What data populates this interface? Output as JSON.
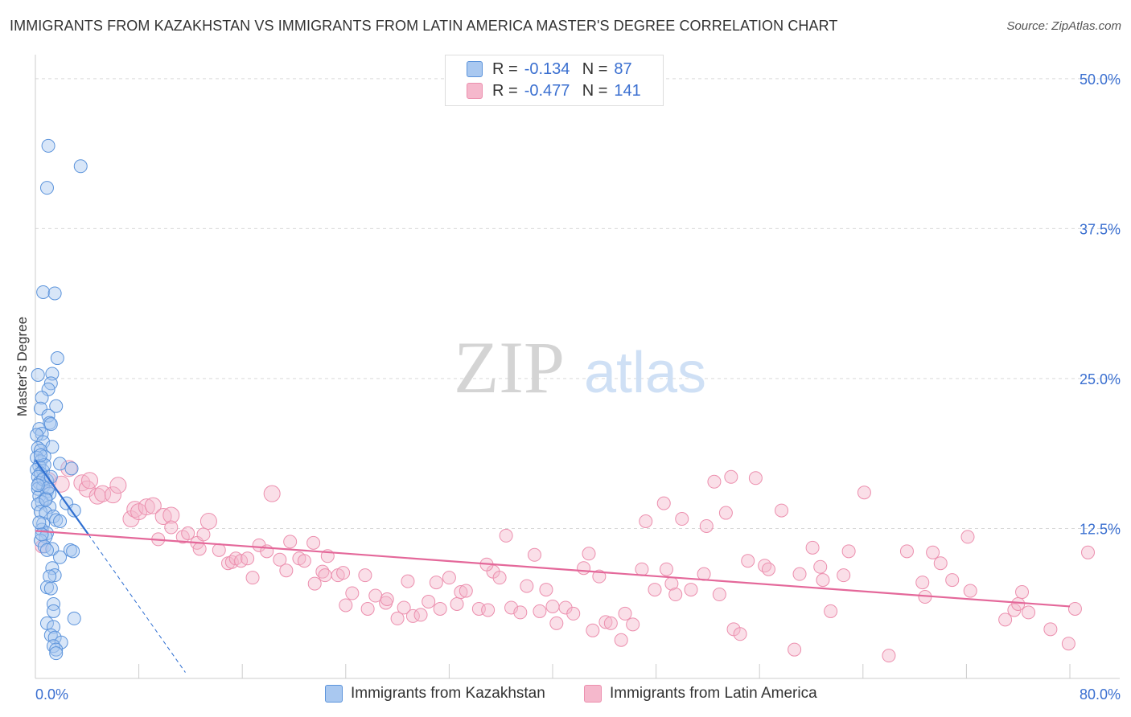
{
  "title": "IMMIGRANTS FROM KAZAKHSTAN VS IMMIGRANTS FROM LATIN AMERICA MASTER'S DEGREE CORRELATION CHART",
  "source": "Source: ZipAtlas.com",
  "watermark": {
    "part1": "ZIP",
    "part2": "atlas"
  },
  "colors": {
    "blue_fill": "#a9c8f0",
    "blue_stroke": "#5b93db",
    "blue_line": "#2f6fd1",
    "pink_fill": "#f5b8cc",
    "pink_stroke": "#ec8fae",
    "pink_line": "#e4689a",
    "axis_text": "#3a6fd0",
    "grid": "#d9d9d9"
  },
  "legend": {
    "rows": [
      {
        "r_label": "R =",
        "r_value": "-0.134",
        "n_label": "N =",
        "n_value": "87"
      },
      {
        "r_label": "R =",
        "r_value": "-0.477",
        "n_label": "N =",
        "n_value": "141"
      }
    ]
  },
  "chart_data": {
    "type": "scatter",
    "title": "IMMIGRANTS FROM KAZAKHSTAN VS IMMIGRANTS FROM LATIN AMERICA MASTER'S DEGREE CORRELATION CHART",
    "xlabel": "",
    "ylabel": "Master's Degree",
    "xlim": [
      0,
      80
    ],
    "ylim": [
      0,
      52
    ],
    "x_tick_labels": [
      "0.0%",
      "80.0%"
    ],
    "y_ticks": [
      12.5,
      25.0,
      37.5,
      50.0
    ],
    "y_tick_labels": [
      "12.5%",
      "25.0%",
      "37.5%",
      "50.0%"
    ],
    "grid": true,
    "series": [
      {
        "name": "Immigrants from Kazakhstan",
        "color": "blue",
        "points": [
          [
            1.0,
            44.4
          ],
          [
            3.5,
            42.7
          ],
          [
            0.9,
            40.9
          ],
          [
            0.6,
            32.2
          ],
          [
            1.5,
            32.1
          ],
          [
            1.7,
            26.7
          ],
          [
            1.3,
            25.4
          ],
          [
            0.2,
            25.3
          ],
          [
            1.2,
            24.6
          ],
          [
            1.0,
            24.1
          ],
          [
            0.5,
            23.4
          ],
          [
            1.6,
            22.7
          ],
          [
            0.4,
            22.5
          ],
          [
            1.0,
            21.9
          ],
          [
            1.1,
            21.3
          ],
          [
            1.2,
            21.2
          ],
          [
            0.3,
            20.8
          ],
          [
            0.5,
            20.4
          ],
          [
            0.1,
            20.3
          ],
          [
            0.6,
            19.7
          ],
          [
            1.3,
            19.3
          ],
          [
            0.2,
            19.2
          ],
          [
            0.4,
            19.0
          ],
          [
            0.7,
            18.5
          ],
          [
            0.1,
            18.4
          ],
          [
            0.4,
            18.1
          ],
          [
            0.3,
            17.7
          ],
          [
            1.9,
            17.9
          ],
          [
            0.1,
            17.4
          ],
          [
            0.6,
            17.3
          ],
          [
            2.8,
            17.5
          ],
          [
            0.4,
            17.1
          ],
          [
            0.2,
            16.8
          ],
          [
            0.9,
            16.5
          ],
          [
            0.3,
            16.3
          ],
          [
            0.6,
            16.0
          ],
          [
            0.2,
            15.8
          ],
          [
            0.9,
            15.6
          ],
          [
            1.1,
            15.4
          ],
          [
            0.3,
            15.2
          ],
          [
            0.8,
            15.0
          ],
          [
            0.5,
            14.7
          ],
          [
            2.4,
            14.6
          ],
          [
            0.2,
            14.5
          ],
          [
            1.1,
            14.3
          ],
          [
            3.0,
            14.0
          ],
          [
            0.4,
            13.9
          ],
          [
            0.8,
            13.8
          ],
          [
            1.4,
            13.5
          ],
          [
            1.6,
            13.2
          ],
          [
            1.9,
            13.1
          ],
          [
            0.6,
            12.9
          ],
          [
            0.5,
            12.4
          ],
          [
            0.9,
            12.1
          ],
          [
            0.8,
            11.8
          ],
          [
            0.4,
            11.5
          ],
          [
            0.7,
            11.0
          ],
          [
            1.3,
            10.8
          ],
          [
            0.9,
            10.7
          ],
          [
            2.7,
            10.7
          ],
          [
            2.9,
            10.6
          ],
          [
            1.9,
            10.1
          ],
          [
            1.3,
            9.2
          ],
          [
            1.5,
            8.6
          ],
          [
            1.1,
            8.5
          ],
          [
            0.9,
            7.6
          ],
          [
            1.2,
            7.5
          ],
          [
            1.4,
            6.2
          ],
          [
            1.4,
            5.6
          ],
          [
            3.0,
            5.0
          ],
          [
            0.9,
            4.6
          ],
          [
            1.4,
            4.3
          ],
          [
            1.2,
            3.6
          ],
          [
            1.5,
            3.4
          ],
          [
            2.0,
            3.0
          ],
          [
            1.4,
            2.7
          ],
          [
            1.6,
            2.4
          ],
          [
            1.6,
            2.1
          ],
          [
            0.6,
            16.6
          ],
          [
            0.8,
            14.9
          ],
          [
            0.3,
            13.0
          ],
          [
            0.5,
            12.0
          ],
          [
            1.0,
            15.9
          ],
          [
            0.7,
            17.8
          ],
          [
            0.2,
            16.1
          ],
          [
            0.4,
            18.6
          ],
          [
            1.2,
            16.8
          ]
        ],
        "trend": {
          "x0": 0.0,
          "y0": 18.2,
          "x1": 4.1,
          "y1": 12.0,
          "dash_to_x": 11.6,
          "dash_to_y": 0.5
        }
      },
      {
        "name": "Immigrants from Latin America",
        "color": "pink",
        "points": [
          [
            0.5,
            11.0
          ],
          [
            1.0,
            16.5
          ],
          [
            2.0,
            16.2
          ],
          [
            2.6,
            17.5
          ],
          [
            3.6,
            16.3
          ],
          [
            4.0,
            15.8
          ],
          [
            4.2,
            16.5
          ],
          [
            4.8,
            15.2
          ],
          [
            5.2,
            15.4
          ],
          [
            6.0,
            15.3
          ],
          [
            6.4,
            16.1
          ],
          [
            7.4,
            13.3
          ],
          [
            7.7,
            14.1
          ],
          [
            8.0,
            13.9
          ],
          [
            8.6,
            14.3
          ],
          [
            9.1,
            14.4
          ],
          [
            9.5,
            11.6
          ],
          [
            9.9,
            13.5
          ],
          [
            10.5,
            13.6
          ],
          [
            10.5,
            12.6
          ],
          [
            11.4,
            11.8
          ],
          [
            11.8,
            12.1
          ],
          [
            12.5,
            11.3
          ],
          [
            12.7,
            10.8
          ],
          [
            13.0,
            12.0
          ],
          [
            13.4,
            13.1
          ],
          [
            14.2,
            10.7
          ],
          [
            14.9,
            9.6
          ],
          [
            15.2,
            9.7
          ],
          [
            15.5,
            10.0
          ],
          [
            15.9,
            9.8
          ],
          [
            16.4,
            10.0
          ],
          [
            16.8,
            8.4
          ],
          [
            17.3,
            11.1
          ],
          [
            17.9,
            10.6
          ],
          [
            18.3,
            15.4
          ],
          [
            18.9,
            9.9
          ],
          [
            19.4,
            9.0
          ],
          [
            19.7,
            11.4
          ],
          [
            20.4,
            10.0
          ],
          [
            20.8,
            9.8
          ],
          [
            21.5,
            11.3
          ],
          [
            21.6,
            7.9
          ],
          [
            22.2,
            8.9
          ],
          [
            22.4,
            8.6
          ],
          [
            23.4,
            8.6
          ],
          [
            23.8,
            8.8
          ],
          [
            24.0,
            6.1
          ],
          [
            24.5,
            7.1
          ],
          [
            25.5,
            8.6
          ],
          [
            25.7,
            5.8
          ],
          [
            26.3,
            6.9
          ],
          [
            27.1,
            6.3
          ],
          [
            27.2,
            6.6
          ],
          [
            28.0,
            5.0
          ],
          [
            28.5,
            5.9
          ],
          [
            28.8,
            8.1
          ],
          [
            29.2,
            5.2
          ],
          [
            29.8,
            5.3
          ],
          [
            30.4,
            6.4
          ],
          [
            31.0,
            8.0
          ],
          [
            31.3,
            5.8
          ],
          [
            32.0,
            8.4
          ],
          [
            32.6,
            6.2
          ],
          [
            32.9,
            7.2
          ],
          [
            33.3,
            7.3
          ],
          [
            34.3,
            5.8
          ],
          [
            35.0,
            5.7
          ],
          [
            35.4,
            8.9
          ],
          [
            35.9,
            8.4
          ],
          [
            36.4,
            11.9
          ],
          [
            36.8,
            5.9
          ],
          [
            37.5,
            5.5
          ],
          [
            38.0,
            7.7
          ],
          [
            38.6,
            10.3
          ],
          [
            39.0,
            5.6
          ],
          [
            39.5,
            7.4
          ],
          [
            40.0,
            6.0
          ],
          [
            40.3,
            4.6
          ],
          [
            41.0,
            5.9
          ],
          [
            41.6,
            5.4
          ],
          [
            42.4,
            9.2
          ],
          [
            42.8,
            10.4
          ],
          [
            43.1,
            4.0
          ],
          [
            43.6,
            8.5
          ],
          [
            44.1,
            4.7
          ],
          [
            44.5,
            4.6
          ],
          [
            45.3,
            3.2
          ],
          [
            45.6,
            5.4
          ],
          [
            46.2,
            4.5
          ],
          [
            46.9,
            9.1
          ],
          [
            47.2,
            13.1
          ],
          [
            47.9,
            7.4
          ],
          [
            48.6,
            14.6
          ],
          [
            48.8,
            9.1
          ],
          [
            49.2,
            7.9
          ],
          [
            49.5,
            7.0
          ],
          [
            50.0,
            13.3
          ],
          [
            50.7,
            7.4
          ],
          [
            51.7,
            8.7
          ],
          [
            51.9,
            12.7
          ],
          [
            52.5,
            16.4
          ],
          [
            52.9,
            7.0
          ],
          [
            53.4,
            13.8
          ],
          [
            53.8,
            16.8
          ],
          [
            54.0,
            4.1
          ],
          [
            54.5,
            3.7
          ],
          [
            55.7,
            16.7
          ],
          [
            56.4,
            9.4
          ],
          [
            56.7,
            9.1
          ],
          [
            57.7,
            14.0
          ],
          [
            58.7,
            2.4
          ],
          [
            59.1,
            8.7
          ],
          [
            60.1,
            10.9
          ],
          [
            60.7,
            9.3
          ],
          [
            60.9,
            8.2
          ],
          [
            61.5,
            5.6
          ],
          [
            62.5,
            8.6
          ],
          [
            62.9,
            10.6
          ],
          [
            64.1,
            15.5
          ],
          [
            66.0,
            1.9
          ],
          [
            67.4,
            10.6
          ],
          [
            68.6,
            8.0
          ],
          [
            68.8,
            6.8
          ],
          [
            69.4,
            10.5
          ],
          [
            70.0,
            9.6
          ],
          [
            70.9,
            8.2
          ],
          [
            72.1,
            11.8
          ],
          [
            72.3,
            7.3
          ],
          [
            75.0,
            4.9
          ],
          [
            75.7,
            5.7
          ],
          [
            76.0,
            6.2
          ],
          [
            76.3,
            7.2
          ],
          [
            76.8,
            5.5
          ],
          [
            78.5,
            4.1
          ],
          [
            79.9,
            2.9
          ],
          [
            80.4,
            5.8
          ],
          [
            81.4,
            10.5
          ],
          [
            55.1,
            9.8
          ],
          [
            34.9,
            9.5
          ],
          [
            22.6,
            10.2
          ]
        ],
        "trend": {
          "x0": 0.0,
          "y0": 12.3,
          "x1": 80.0,
          "y1": 6.0
        }
      }
    ]
  },
  "axes": {
    "y_title": "Master's Degree",
    "x_min_label": "0.0%",
    "x_max_label": "80.0%"
  },
  "bottom_legend": {
    "items": [
      {
        "label": "Immigrants from Kazakhstan"
      },
      {
        "label": "Immigrants from Latin America"
      }
    ]
  }
}
